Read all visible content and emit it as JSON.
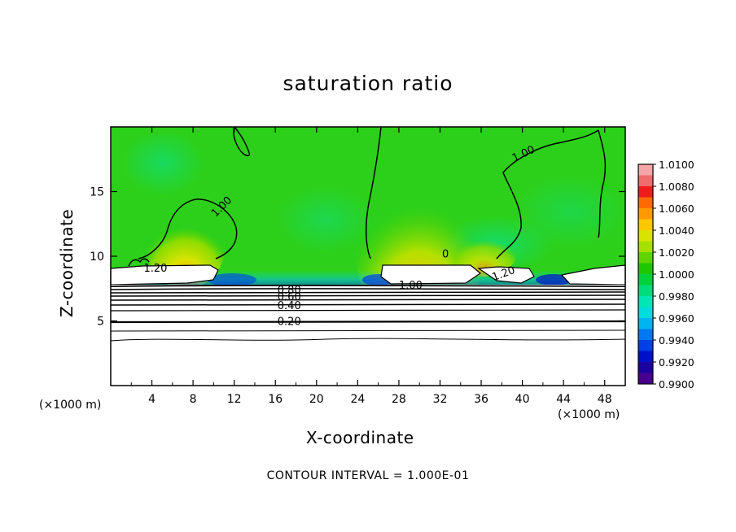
{
  "chart_data": {
    "type": "heatmap",
    "title": "saturation ratio",
    "xlabel": "X-coordinate",
    "ylabel": "Z-coordinate",
    "x_unit": "(×1000 m)",
    "xlim": [
      0,
      50
    ],
    "ylim": [
      0,
      20
    ],
    "x_ticks": [
      4,
      8,
      12,
      16,
      20,
      24,
      28,
      32,
      36,
      40,
      44,
      48
    ],
    "y_ticks": [
      5,
      10,
      15
    ],
    "colorbar": {
      "min": 0.99,
      "max": 1.01,
      "labels": [
        "1.0100",
        "1.0080",
        "1.0060",
        "1.0040",
        "1.0020",
        "1.0000",
        "0.9980",
        "0.9960",
        "0.9940",
        "0.9920",
        "0.9900"
      ],
      "colors": [
        "#f4a7a7",
        "#f06b6b",
        "#ee1c1c",
        "#ff6a00",
        "#ff9a00",
        "#ffc800",
        "#d9e300",
        "#a8e000",
        "#5fd400",
        "#1ec800",
        "#00d23c",
        "#00dc7a",
        "#00e6b4",
        "#00dcdc",
        "#00b4f0",
        "#0078f0",
        "#0040e6",
        "#0010c8",
        "#1c00a0",
        "#46008c"
      ]
    },
    "contour_labels": [
      {
        "text": "1.00",
        "x": 10.2,
        "y": 13.0,
        "angle": -45
      },
      {
        "text": "1.00",
        "x": 39.2,
        "y": 17.3,
        "angle": -25
      },
      {
        "text": "1.20",
        "x": 3.2,
        "y": 8.8,
        "angle": 0
      },
      {
        "text": "0",
        "x": 32.2,
        "y": 9.9,
        "angle": 0
      },
      {
        "text": "1.20",
        "x": 37.2,
        "y": 8.1,
        "angle": -20
      },
      {
        "text": "1.00",
        "x": 28.0,
        "y": 7.5,
        "angle": 0
      },
      {
        "text": "0.80",
        "x": 16.2,
        "y": 7.1,
        "angle": 0
      },
      {
        "text": "0.60",
        "x": 16.2,
        "y": 6.6,
        "angle": 0
      },
      {
        "text": "0.40",
        "x": 16.2,
        "y": 5.9,
        "angle": 0
      },
      {
        "text": "0.20",
        "x": 16.2,
        "y": 4.7,
        "angle": 0
      }
    ],
    "contour_interval": "1.000E-01",
    "grid": false
  },
  "footer_prefix": "CONTOUR INTERVAL = "
}
